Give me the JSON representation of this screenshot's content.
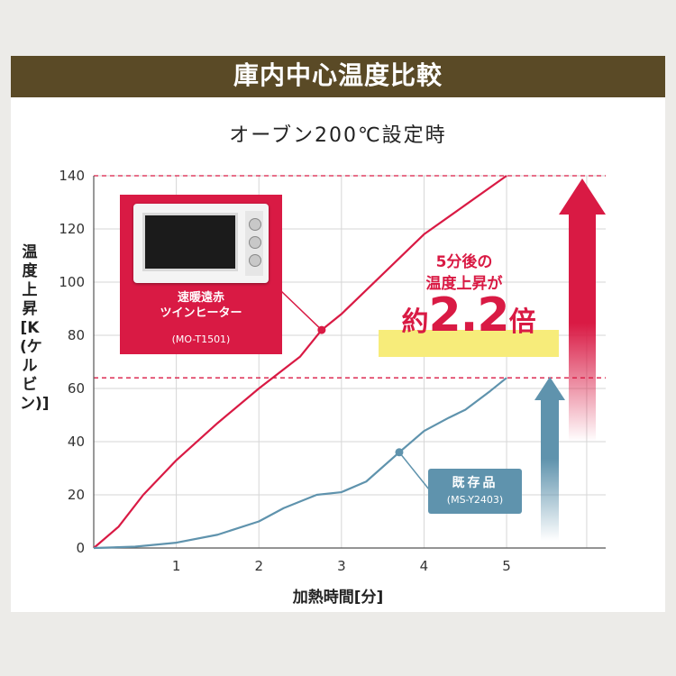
{
  "header": {
    "title": "庫内中心温度比較"
  },
  "subtitle": "オーブン200℃設定時",
  "callouts": {
    "new_model": {
      "name_line1": "速暖遠赤",
      "name_line2": "ツインヒーター",
      "model": "(MO-T1501)"
    },
    "old_model": {
      "name": "既存品",
      "model": "(MS-Y2403)"
    }
  },
  "annotation": {
    "line1": "5分後の",
    "line2": "温度上昇が",
    "prefix": "約",
    "ratio": "2.2",
    "suffix": "倍"
  },
  "colors": {
    "red": "#d91a44",
    "blue": "#5f93ad",
    "banner": "#5a4a26",
    "highlight": "#f7ec7a"
  },
  "chart_data": {
    "type": "line",
    "title": "オーブン200℃設定時",
    "xlabel": "加熱時間[分]",
    "ylabel": "温度上昇[K(ケルビン)]",
    "xlim": [
      0,
      6.2
    ],
    "ylim": [
      0,
      140
    ],
    "xticks": [
      1,
      2,
      3,
      4,
      5
    ],
    "yticks": [
      0,
      20,
      40,
      60,
      80,
      100,
      120,
      140
    ],
    "grid": true,
    "series": [
      {
        "name": "速暖遠赤ツインヒーター(MO-T1501)",
        "x": [
          0,
          0.3,
          0.6,
          1.0,
          1.5,
          2.0,
          2.5,
          2.76,
          3.0,
          3.5,
          4.0,
          4.5,
          5.0
        ],
        "y": [
          0,
          8,
          20,
          33,
          47,
          60,
          72,
          82,
          88,
          103,
          118,
          129,
          140
        ]
      },
      {
        "name": "既存品(MS-Y2403)",
        "x": [
          0,
          0.5,
          1.0,
          1.5,
          2.0,
          2.3,
          2.7,
          3.0,
          3.3,
          3.7,
          4.0,
          4.3,
          4.5,
          4.8,
          5.0
        ],
        "y": [
          0,
          0.5,
          2,
          5,
          10,
          15,
          20,
          21,
          25,
          36,
          44,
          49,
          52,
          59,
          64
        ]
      }
    ],
    "reference_lines": [
      140,
      64
    ]
  }
}
